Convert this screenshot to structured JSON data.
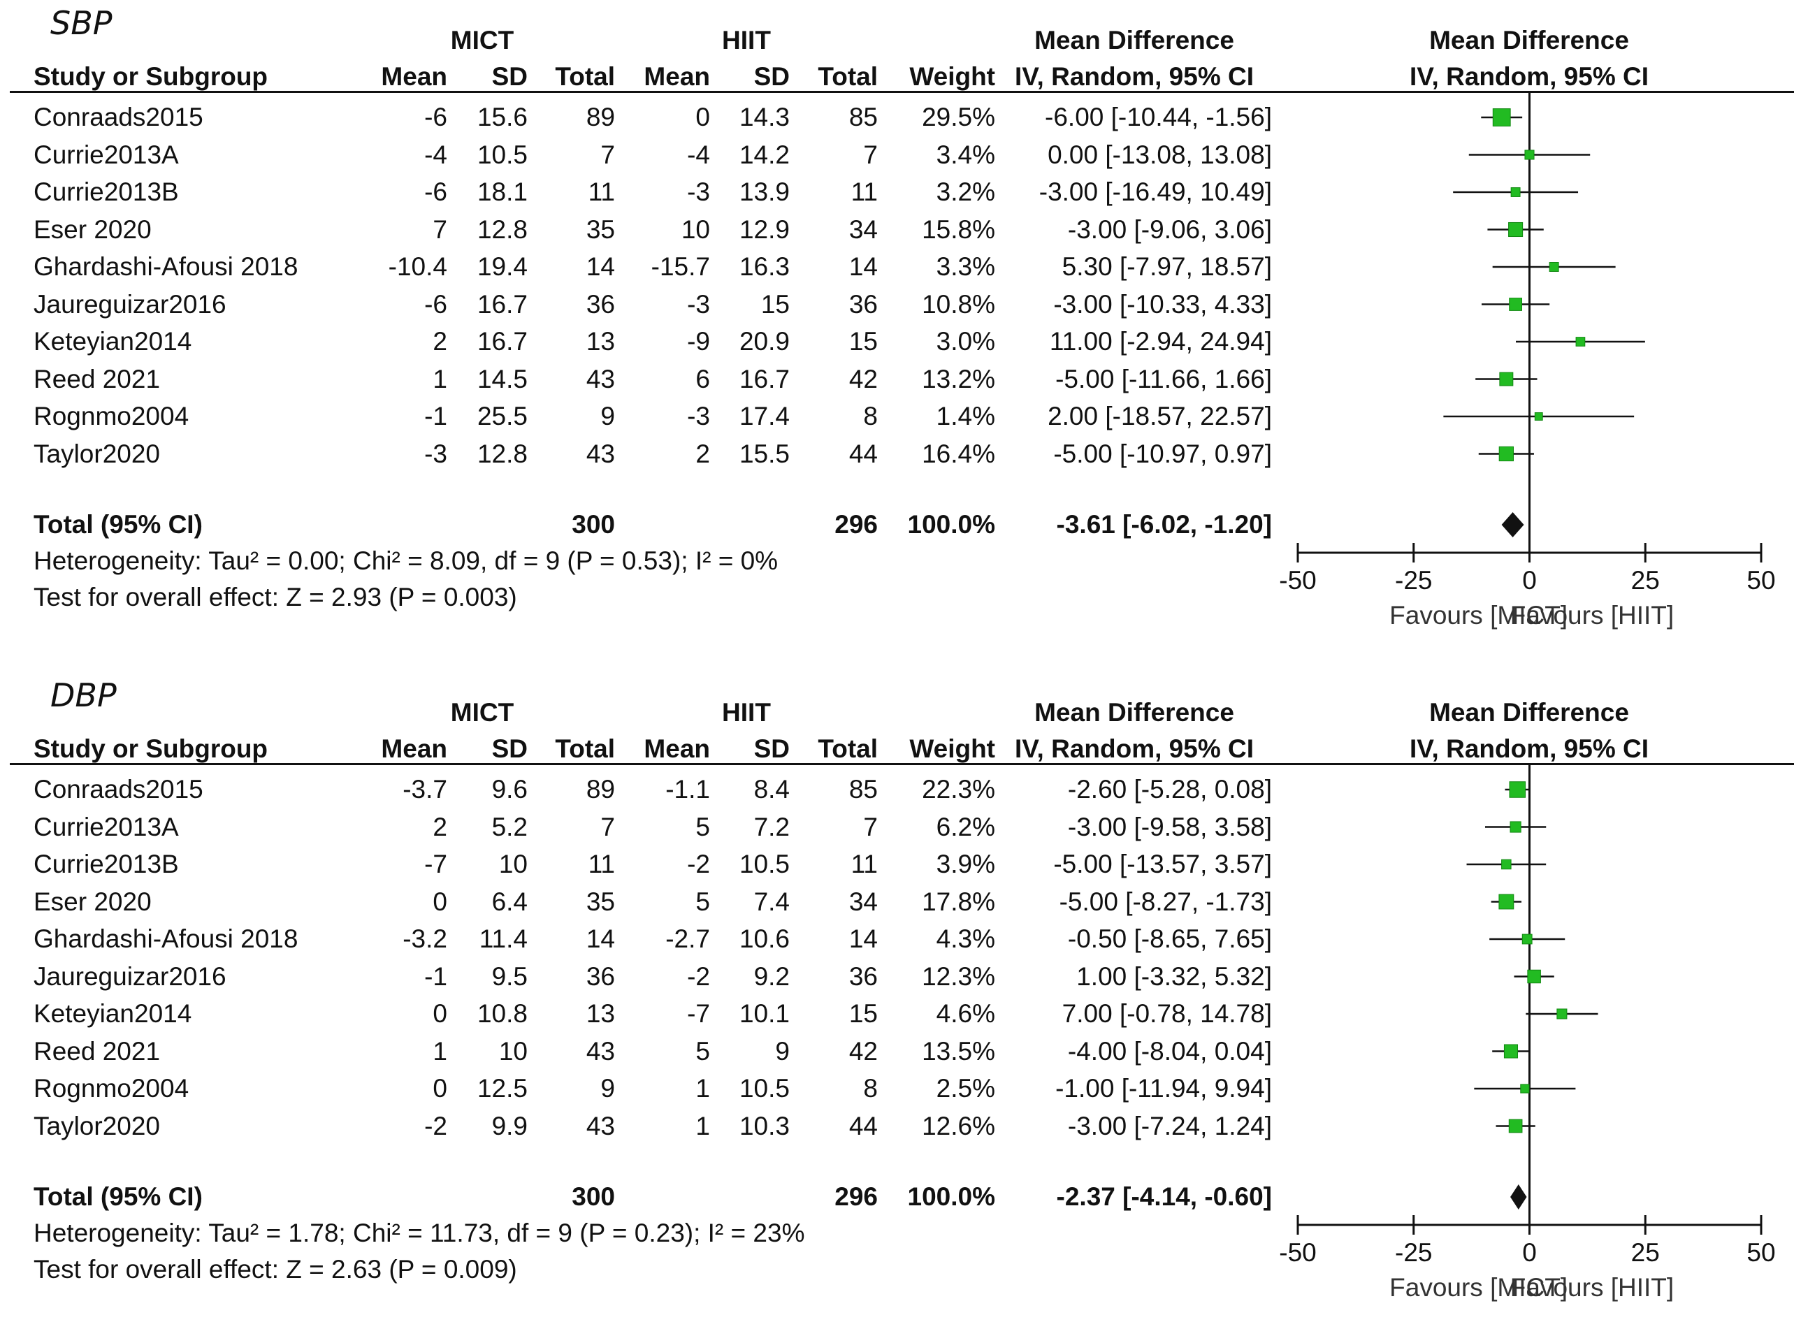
{
  "chart_data": [
    {
      "type": "forest",
      "panel_title": "SBP",
      "group1_label": "MICT",
      "group2_label": "HIIT",
      "columns": {
        "study": "Study or Subgroup",
        "mean1": "Mean",
        "sd1": "SD",
        "total1": "Total",
        "mean2": "Mean",
        "sd2": "SD",
        "total2": "Total",
        "weight": "Weight",
        "md_top": "Mean Difference",
        "md_bottom": "IV, Random, 95% CI",
        "plot_top": "Mean Difference",
        "plot_bottom": "IV, Random, 95% CI"
      },
      "studies": [
        {
          "name": "Conraads2015",
          "mean1": "-6",
          "sd1": "15.6",
          "total1": "89",
          "mean2": "0",
          "sd2": "14.3",
          "total2": "85",
          "weight": "29.5%",
          "ci_text": "-6.00 [-10.44, -1.56]",
          "md": -6.0,
          "lo": -10.44,
          "hi": -1.56,
          "w": 29.5
        },
        {
          "name": "Currie2013A",
          "mean1": "-4",
          "sd1": "10.5",
          "total1": "7",
          "mean2": "-4",
          "sd2": "14.2",
          "total2": "7",
          "weight": "3.4%",
          "ci_text": "0.00 [-13.08, 13.08]",
          "md": 0.0,
          "lo": -13.08,
          "hi": 13.08,
          "w": 3.4
        },
        {
          "name": "Currie2013B",
          "mean1": "-6",
          "sd1": "18.1",
          "total1": "11",
          "mean2": "-3",
          "sd2": "13.9",
          "total2": "11",
          "weight": "3.2%",
          "ci_text": "-3.00 [-16.49, 10.49]",
          "md": -3.0,
          "lo": -16.49,
          "hi": 10.49,
          "w": 3.2
        },
        {
          "name": "Eser 2020",
          "mean1": "7",
          "sd1": "12.8",
          "total1": "35",
          "mean2": "10",
          "sd2": "12.9",
          "total2": "34",
          "weight": "15.8%",
          "ci_text": "-3.00 [-9.06, 3.06]",
          "md": -3.0,
          "lo": -9.06,
          "hi": 3.06,
          "w": 15.8
        },
        {
          "name": "Ghardashi-Afousi 2018",
          "mean1": "-10.4",
          "sd1": "19.4",
          "total1": "14",
          "mean2": "-15.7",
          "sd2": "16.3",
          "total2": "14",
          "weight": "3.3%",
          "ci_text": "5.30 [-7.97, 18.57]",
          "md": 5.3,
          "lo": -7.97,
          "hi": 18.57,
          "w": 3.3
        },
        {
          "name": "Jaureguizar2016",
          "mean1": "-6",
          "sd1": "16.7",
          "total1": "36",
          "mean2": "-3",
          "sd2": "15",
          "total2": "36",
          "weight": "10.8%",
          "ci_text": "-3.00 [-10.33, 4.33]",
          "md": -3.0,
          "lo": -10.33,
          "hi": 4.33,
          "w": 10.8
        },
        {
          "name": "Keteyian2014",
          "mean1": "2",
          "sd1": "16.7",
          "total1": "13",
          "mean2": "-9",
          "sd2": "20.9",
          "total2": "15",
          "weight": "3.0%",
          "ci_text": "11.00 [-2.94, 24.94]",
          "md": 11.0,
          "lo": -2.94,
          "hi": 24.94,
          "w": 3.0
        },
        {
          "name": "Reed 2021",
          "mean1": "1",
          "sd1": "14.5",
          "total1": "43",
          "mean2": "6",
          "sd2": "16.7",
          "total2": "42",
          "weight": "13.2%",
          "ci_text": "-5.00 [-11.66, 1.66]",
          "md": -5.0,
          "lo": -11.66,
          "hi": 1.66,
          "w": 13.2
        },
        {
          "name": "Rognmo2004",
          "mean1": "-1",
          "sd1": "25.5",
          "total1": "9",
          "mean2": "-3",
          "sd2": "17.4",
          "total2": "8",
          "weight": "1.4%",
          "ci_text": "2.00 [-18.57, 22.57]",
          "md": 2.0,
          "lo": -18.57,
          "hi": 22.57,
          "w": 1.4
        },
        {
          "name": "Taylor2020",
          "mean1": "-3",
          "sd1": "12.8",
          "total1": "43",
          "mean2": "2",
          "sd2": "15.5",
          "total2": "44",
          "weight": "16.4%",
          "ci_text": "-5.00 [-10.97, 0.97]",
          "md": -5.0,
          "lo": -10.97,
          "hi": 0.97,
          "w": 16.4
        }
      ],
      "total": {
        "label": "Total (95% CI)",
        "total1": "300",
        "total2": "296",
        "weight": "100.0%",
        "ci_text": "-3.61 [-6.02, -1.20]",
        "md": -3.61,
        "lo": -6.02,
        "hi": -1.2
      },
      "heterogeneity": "Heterogeneity: Tau² = 0.00; Chi² = 8.09, df = 9 (P = 0.53); I² = 0%",
      "overall_effect": "Test for overall effect: Z = 2.93 (P = 0.003)",
      "axis": {
        "min": -50,
        "max": 50,
        "ticks": [
          -50,
          -25,
          0,
          25,
          50
        ],
        "tick_labels": [
          "-50",
          "-25",
          "0",
          "25",
          "50"
        ]
      },
      "favours_left": "Favours [MICT]",
      "favours_right": "Favours [HIIT]"
    },
    {
      "type": "forest",
      "panel_title": "DBP",
      "group1_label": "MICT",
      "group2_label": "HIIT",
      "columns": {
        "study": "Study or Subgroup",
        "mean1": "Mean",
        "sd1": "SD",
        "total1": "Total",
        "mean2": "Mean",
        "sd2": "SD",
        "total2": "Total",
        "weight": "Weight",
        "md_top": "Mean Difference",
        "md_bottom": "IV, Random, 95% CI",
        "plot_top": "Mean Difference",
        "plot_bottom": "IV, Random, 95% CI"
      },
      "studies": [
        {
          "name": "Conraads2015",
          "mean1": "-3.7",
          "sd1": "9.6",
          "total1": "89",
          "mean2": "-1.1",
          "sd2": "8.4",
          "total2": "85",
          "weight": "22.3%",
          "ci_text": "-2.60 [-5.28, 0.08]",
          "md": -2.6,
          "lo": -5.28,
          "hi": 0.08,
          "w": 22.3
        },
        {
          "name": "Currie2013A",
          "mean1": "2",
          "sd1": "5.2",
          "total1": "7",
          "mean2": "5",
          "sd2": "7.2",
          "total2": "7",
          "weight": "6.2%",
          "ci_text": "-3.00 [-9.58, 3.58]",
          "md": -3.0,
          "lo": -9.58,
          "hi": 3.58,
          "w": 6.2
        },
        {
          "name": "Currie2013B",
          "mean1": "-7",
          "sd1": "10",
          "total1": "11",
          "mean2": "-2",
          "sd2": "10.5",
          "total2": "11",
          "weight": "3.9%",
          "ci_text": "-5.00 [-13.57, 3.57]",
          "md": -5.0,
          "lo": -13.57,
          "hi": 3.57,
          "w": 3.9
        },
        {
          "name": "Eser 2020",
          "mean1": "0",
          "sd1": "6.4",
          "total1": "35",
          "mean2": "5",
          "sd2": "7.4",
          "total2": "34",
          "weight": "17.8%",
          "ci_text": "-5.00 [-8.27, -1.73]",
          "md": -5.0,
          "lo": -8.27,
          "hi": -1.73,
          "w": 17.8
        },
        {
          "name": "Ghardashi-Afousi 2018",
          "mean1": "-3.2",
          "sd1": "11.4",
          "total1": "14",
          "mean2": "-2.7",
          "sd2": "10.6",
          "total2": "14",
          "weight": "4.3%",
          "ci_text": "-0.50 [-8.65, 7.65]",
          "md": -0.5,
          "lo": -8.65,
          "hi": 7.65,
          "w": 4.3
        },
        {
          "name": "Jaureguizar2016",
          "mean1": "-1",
          "sd1": "9.5",
          "total1": "36",
          "mean2": "-2",
          "sd2": "9.2",
          "total2": "36",
          "weight": "12.3%",
          "ci_text": "1.00 [-3.32, 5.32]",
          "md": 1.0,
          "lo": -3.32,
          "hi": 5.32,
          "w": 12.3
        },
        {
          "name": "Keteyian2014",
          "mean1": "0",
          "sd1": "10.8",
          "total1": "13",
          "mean2": "-7",
          "sd2": "10.1",
          "total2": "15",
          "weight": "4.6%",
          "ci_text": "7.00 [-0.78, 14.78]",
          "md": 7.0,
          "lo": -0.78,
          "hi": 14.78,
          "w": 4.6
        },
        {
          "name": "Reed 2021",
          "mean1": "1",
          "sd1": "10",
          "total1": "43",
          "mean2": "5",
          "sd2": "9",
          "total2": "42",
          "weight": "13.5%",
          "ci_text": "-4.00 [-8.04, 0.04]",
          "md": -4.0,
          "lo": -8.04,
          "hi": 0.04,
          "w": 13.5
        },
        {
          "name": "Rognmo2004",
          "mean1": "0",
          "sd1": "12.5",
          "total1": "9",
          "mean2": "1",
          "sd2": "10.5",
          "total2": "8",
          "weight": "2.5%",
          "ci_text": "-1.00 [-11.94, 9.94]",
          "md": -1.0,
          "lo": -11.94,
          "hi": 9.94,
          "w": 2.5
        },
        {
          "name": "Taylor2020",
          "mean1": "-2",
          "sd1": "9.9",
          "total1": "43",
          "mean2": "1",
          "sd2": "10.3",
          "total2": "44",
          "weight": "12.6%",
          "ci_text": "-3.00 [-7.24, 1.24]",
          "md": -3.0,
          "lo": -7.24,
          "hi": 1.24,
          "w": 12.6
        }
      ],
      "total": {
        "label": "Total (95% CI)",
        "total1": "300",
        "total2": "296",
        "weight": "100.0%",
        "ci_text": "-2.37 [-4.14, -0.60]",
        "md": -2.37,
        "lo": -4.14,
        "hi": -0.6
      },
      "heterogeneity": "Heterogeneity: Tau² = 1.78; Chi² = 11.73, df = 9 (P = 0.23); I² = 23%",
      "overall_effect": "Test for overall effect: Z = 2.63 (P = 0.009)",
      "axis": {
        "min": -50,
        "max": 50,
        "ticks": [
          -50,
          -25,
          0,
          25,
          50
        ],
        "tick_labels": [
          "-50",
          "-25",
          "0",
          "25",
          "50"
        ]
      },
      "favours_left": "Favours [MICT]",
      "favours_right": "Favours [HIIT]"
    }
  ],
  "colors": {
    "marker": "#22bb22",
    "marker_edge": "#118811",
    "diamond": "#111111",
    "line": "#111111"
  }
}
